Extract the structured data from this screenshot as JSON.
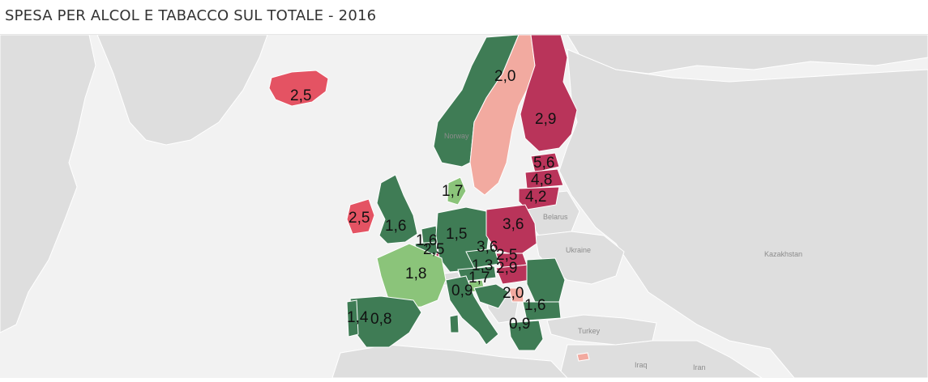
{
  "title": "SPESA PER ALCOL E TABACCO SUL TOTALE - 2016",
  "colors": {
    "sea": "#f2f2f2",
    "land": "#dedede",
    "border": "#ffffff",
    "low": "#3f7c55",
    "low_mid": "#8bc47a",
    "mid": "#f2aaa0",
    "high_mid": "#e45363",
    "high": "#b9345a"
  },
  "geo_labels": {
    "norway": "Norway",
    "belarus": "Belarus",
    "ukraine": "Ukraine",
    "kazakhstan": "Kazakhstan",
    "turkey": "Turkey",
    "iraq": "Iraq",
    "iran": "Iran"
  },
  "values": {
    "iceland": "2,5",
    "sweden": "2,0",
    "finland": "2,9",
    "estonia": "5,6",
    "latvia": "4,8",
    "lithuania": "4,2",
    "denmark": "1,7",
    "ireland": "2,5",
    "uk": "1,6",
    "germany": "1,5",
    "netherlands": "1,6",
    "belgium": "2,5",
    "luxembourg": "3,6",
    "poland": "3,6",
    "czechia": "1,3",
    "slovakia": "2,5",
    "hungary": "2,9",
    "austria": "1,7",
    "france": "1,8",
    "slovenia": "0,9",
    "croatia": "2,0",
    "romania": "1,6",
    "bulgaria": "0,9",
    "portugal": "1,4",
    "spain": "0,8"
  }
}
